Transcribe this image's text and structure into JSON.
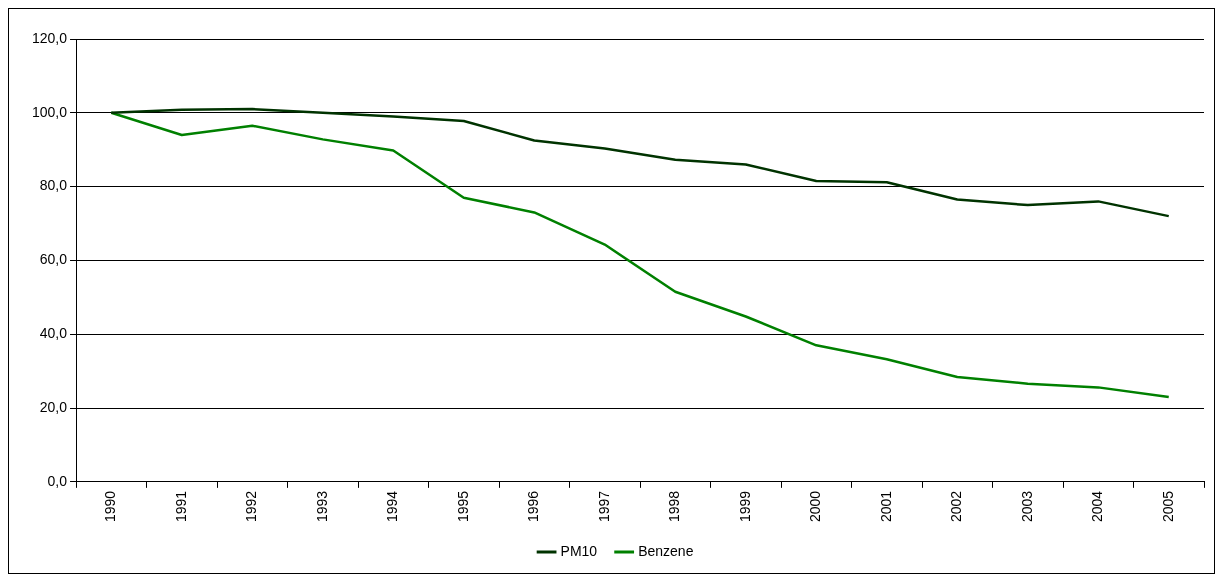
{
  "chart_data": {
    "type": "line",
    "categories": [
      "1990",
      "1991",
      "1992",
      "1993",
      "1994",
      "1995",
      "1996",
      "1997",
      "1998",
      "1999",
      "2000",
      "2001",
      "2002",
      "2003",
      "2004",
      "2005"
    ],
    "series": [
      {
        "name": "PM10",
        "color": "#003300",
        "values": [
          100,
          100.8,
          101,
          100,
          99,
          97.8,
          92.5,
          90.3,
          87.3,
          86,
          81.5,
          81.2,
          76.5,
          75,
          76,
          72
        ]
      },
      {
        "name": "Benzene",
        "color": "#008000",
        "values": [
          100,
          94,
          96.5,
          92.8,
          89.8,
          77,
          73,
          64.3,
          51.5,
          44.8,
          37,
          33.2,
          28.4,
          26.6,
          25.6,
          23
        ]
      }
    ],
    "ylim": [
      0,
      120
    ],
    "yticks": [
      {
        "value": 0,
        "label": "0,0"
      },
      {
        "value": 20,
        "label": "20,0"
      },
      {
        "value": 40,
        "label": "40,0"
      },
      {
        "value": 60,
        "label": "60,0"
      },
      {
        "value": 80,
        "label": "80,0"
      },
      {
        "value": 100,
        "label": "100,0"
      },
      {
        "value": 120,
        "label": "120,0"
      }
    ],
    "grid": "y",
    "legend": "bottom",
    "marker": "none",
    "line_style": "solid"
  }
}
